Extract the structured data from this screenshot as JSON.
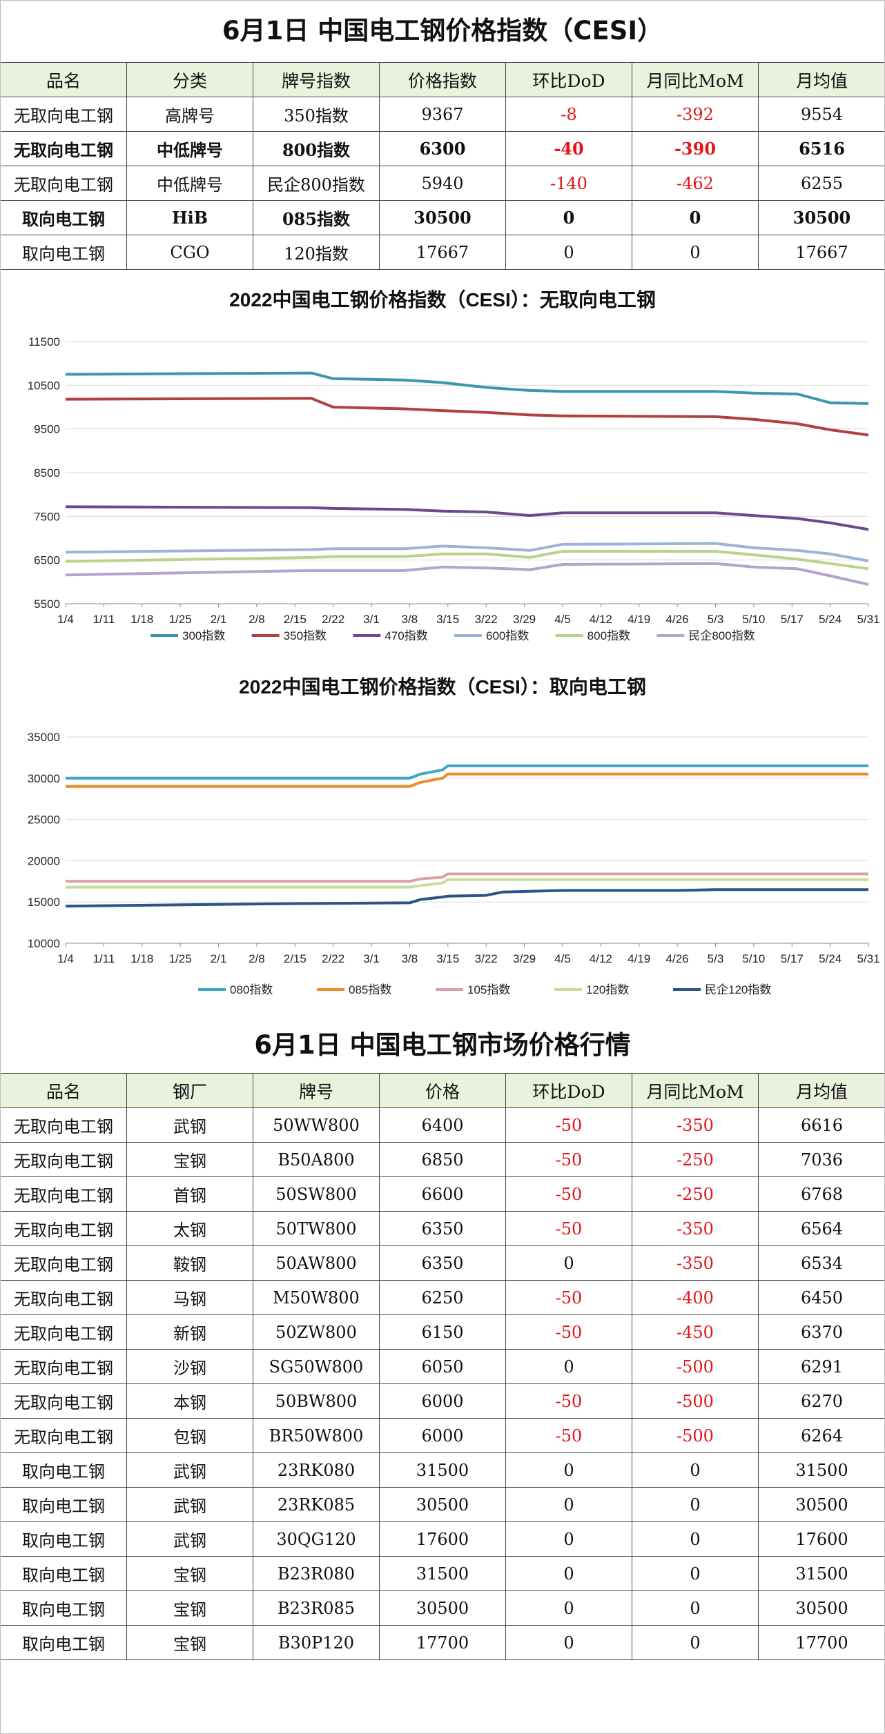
{
  "index_table": {
    "title": "6月1日 中国电工钢价格指数（CESI）",
    "headers": [
      "品名",
      "分类",
      "牌号指数",
      "价格指数",
      "环比DoD",
      "月同比MoM",
      "月均值"
    ],
    "rows": [
      {
        "name": "无取向电工钢",
        "category": "高牌号",
        "grade": "350指数",
        "price": "9367",
        "dod": "-8",
        "mom": "-392",
        "avg": "9554",
        "bold": false
      },
      {
        "name": "无取向电工钢",
        "category": "中低牌号",
        "grade": "800指数",
        "price": "6300",
        "dod": "-40",
        "mom": "-390",
        "avg": "6516",
        "bold": true
      },
      {
        "name": "无取向电工钢",
        "category": "中低牌号",
        "grade": "民企800指数",
        "price": "5940",
        "dod": "-140",
        "mom": "-462",
        "avg": "6255",
        "bold": false
      },
      {
        "name": "取向电工钢",
        "category": "HiB",
        "grade": "085指数",
        "price": "30500",
        "dod": "0",
        "mom": "0",
        "avg": "30500",
        "bold": true
      },
      {
        "name": "取向电工钢",
        "category": "CGO",
        "grade": "120指数",
        "price": "17667",
        "dod": "0",
        "mom": "0",
        "avg": "17667",
        "bold": false
      }
    ]
  },
  "chart_data": [
    {
      "type": "line",
      "title": "2022中国电工钢价格指数（CESI）：无取向电工钢",
      "x_tick_labels": [
        "1/4",
        "1/11",
        "1/18",
        "1/25",
        "2/1",
        "2/8",
        "2/15",
        "2/22",
        "3/1",
        "3/8",
        "3/15",
        "3/22",
        "3/29",
        "4/5",
        "4/12",
        "4/19",
        "4/26",
        "5/3",
        "5/10",
        "5/17",
        "5/24",
        "5/31"
      ],
      "x": [
        "1/4",
        "2/18",
        "2/22",
        "3/7",
        "3/14",
        "3/22",
        "3/30",
        "4/5",
        "5/3",
        "5/10",
        "5/18",
        "5/24",
        "5/31"
      ],
      "ylim": [
        5500,
        11500
      ],
      "y_ticks": [
        5500,
        6500,
        7500,
        8500,
        9500,
        10500,
        11500
      ],
      "legend_position": "bottom",
      "series": [
        {
          "name": "300指数",
          "color": "#3a97ad",
          "values": [
            10750,
            10780,
            10650,
            10620,
            10560,
            10450,
            10380,
            10360,
            10360,
            10320,
            10300,
            10100,
            10080
          ]
        },
        {
          "name": "350指数",
          "color": "#b0413e",
          "values": [
            10180,
            10200,
            10000,
            9960,
            9920,
            9880,
            9820,
            9800,
            9780,
            9720,
            9620,
            9480,
            9360
          ]
        },
        {
          "name": "470指数",
          "color": "#6a4a8c",
          "values": [
            7720,
            7700,
            7680,
            7660,
            7620,
            7600,
            7520,
            7580,
            7580,
            7520,
            7450,
            7350,
            7200
          ]
        },
        {
          "name": "600指数",
          "color": "#9db3d6",
          "values": [
            6680,
            6740,
            6760,
            6760,
            6820,
            6780,
            6720,
            6860,
            6880,
            6780,
            6720,
            6640,
            6480
          ]
        },
        {
          "name": "800指数",
          "color": "#b8d38a",
          "values": [
            6470,
            6560,
            6580,
            6580,
            6640,
            6640,
            6560,
            6700,
            6700,
            6620,
            6520,
            6420,
            6300
          ]
        },
        {
          "name": "民企800指数",
          "color": "#b3a3cf",
          "values": [
            6160,
            6260,
            6260,
            6260,
            6340,
            6320,
            6280,
            6400,
            6420,
            6340,
            6300,
            6140,
            5940
          ]
        }
      ]
    },
    {
      "type": "line",
      "title": "2022中国电工钢价格指数（CESI）：取向电工钢",
      "x_tick_labels": [
        "1/4",
        "1/11",
        "1/18",
        "1/25",
        "2/1",
        "2/8",
        "2/15",
        "2/22",
        "3/1",
        "3/8",
        "3/15",
        "3/22",
        "3/29",
        "4/5",
        "4/12",
        "4/19",
        "4/26",
        "5/3",
        "5/10",
        "5/17",
        "5/24",
        "5/31"
      ],
      "x": [
        "1/4",
        "2/14",
        "3/8",
        "3/10",
        "3/14",
        "3/15",
        "3/22",
        "3/25",
        "4/5",
        "4/26",
        "5/3",
        "5/31"
      ],
      "ylim": [
        10000,
        35000
      ],
      "y_ticks": [
        10000,
        15000,
        20000,
        25000,
        30000,
        35000
      ],
      "legend_position": "bottom",
      "series": [
        {
          "name": "080指数",
          "color": "#3fa7c6",
          "values": [
            30000,
            30000,
            30000,
            30500,
            31000,
            31500,
            31500,
            31500,
            31500,
            31500,
            31500,
            31500
          ]
        },
        {
          "name": "085指数",
          "color": "#ec8c2c",
          "values": [
            29000,
            29000,
            29000,
            29500,
            30000,
            30500,
            30500,
            30500,
            30500,
            30500,
            30500,
            30500
          ]
        },
        {
          "name": "105指数",
          "color": "#d9a0a6",
          "values": [
            17500,
            17500,
            17500,
            17800,
            18000,
            18400,
            18400,
            18400,
            18400,
            18400,
            18400,
            18400
          ]
        },
        {
          "name": "120指数",
          "color": "#c9dc97",
          "values": [
            16800,
            16800,
            16800,
            17000,
            17300,
            17700,
            17700,
            17700,
            17700,
            17700,
            17700,
            17700
          ]
        },
        {
          "name": "民企120指数",
          "color": "#2d5486",
          "values": [
            14500,
            14800,
            14900,
            15300,
            15600,
            15700,
            15800,
            16200,
            16400,
            16400,
            16500,
            16500
          ]
        }
      ]
    }
  ],
  "market_table": {
    "title": "6月1日 中国电工钢市场价格行情",
    "headers": [
      "品名",
      "钢厂",
      "牌号",
      "价格",
      "环比DoD",
      "月同比MoM",
      "月均值"
    ],
    "rows": [
      {
        "name": "无取向电工钢",
        "mill": "武钢",
        "grade": "50WW800",
        "price": "6400",
        "dod": "-50",
        "mom": "-350",
        "avg": "6616"
      },
      {
        "name": "无取向电工钢",
        "mill": "宝钢",
        "grade": "B50A800",
        "price": "6850",
        "dod": "-50",
        "mom": "-250",
        "avg": "7036"
      },
      {
        "name": "无取向电工钢",
        "mill": "首钢",
        "grade": "50SW800",
        "price": "6600",
        "dod": "-50",
        "mom": "-250",
        "avg": "6768"
      },
      {
        "name": "无取向电工钢",
        "mill": "太钢",
        "grade": "50TW800",
        "price": "6350",
        "dod": "-50",
        "mom": "-350",
        "avg": "6564"
      },
      {
        "name": "无取向电工钢",
        "mill": "鞍钢",
        "grade": "50AW800",
        "price": "6350",
        "dod": "0",
        "mom": "-350",
        "avg": "6534"
      },
      {
        "name": "无取向电工钢",
        "mill": "马钢",
        "grade": "M50W800",
        "price": "6250",
        "dod": "-50",
        "mom": "-400",
        "avg": "6450"
      },
      {
        "name": "无取向电工钢",
        "mill": "新钢",
        "grade": "50ZW800",
        "price": "6150",
        "dod": "-50",
        "mom": "-450",
        "avg": "6370"
      },
      {
        "name": "无取向电工钢",
        "mill": "沙钢",
        "grade": "SG50W800",
        "price": "6050",
        "dod": "0",
        "mom": "-500",
        "avg": "6291"
      },
      {
        "name": "无取向电工钢",
        "mill": "本钢",
        "grade": "50BW800",
        "price": "6000",
        "dod": "-50",
        "mom": "-500",
        "avg": "6270"
      },
      {
        "name": "无取向电工钢",
        "mill": "包钢",
        "grade": "BR50W800",
        "price": "6000",
        "dod": "-50",
        "mom": "-500",
        "avg": "6264"
      },
      {
        "name": "取向电工钢",
        "mill": "武钢",
        "grade": "23RK080",
        "price": "31500",
        "dod": "0",
        "mom": "0",
        "avg": "31500"
      },
      {
        "name": "取向电工钢",
        "mill": "武钢",
        "grade": "23RK085",
        "price": "30500",
        "dod": "0",
        "mom": "0",
        "avg": "30500"
      },
      {
        "name": "取向电工钢",
        "mill": "武钢",
        "grade": "30QG120",
        "price": "17600",
        "dod": "0",
        "mom": "0",
        "avg": "17600"
      },
      {
        "name": "取向电工钢",
        "mill": "宝钢",
        "grade": "B23R080",
        "price": "31500",
        "dod": "0",
        "mom": "0",
        "avg": "31500"
      },
      {
        "name": "取向电工钢",
        "mill": "宝钢",
        "grade": "B23R085",
        "price": "30500",
        "dod": "0",
        "mom": "0",
        "avg": "30500"
      },
      {
        "name": "取向电工钢",
        "mill": "宝钢",
        "grade": "B30P120",
        "price": "17700",
        "dod": "0",
        "mom": "0",
        "avg": "17700"
      }
    ]
  },
  "colors": {
    "negative": "#e0161b",
    "header_bg": "#eaf1dd"
  }
}
